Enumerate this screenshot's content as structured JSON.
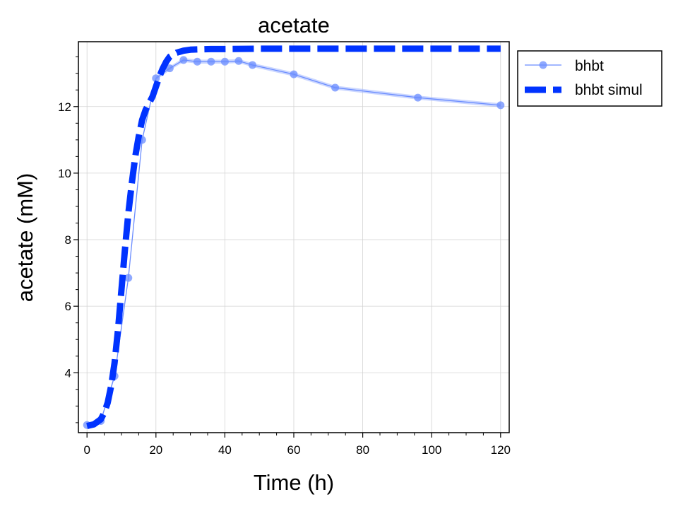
{
  "chart_data": {
    "type": "line",
    "title": "acetate",
    "xlabel": "Time (h)",
    "ylabel": "acetate (mM)",
    "xlim": [
      -2.5,
      122.5
    ],
    "ylim": [
      2.2,
      13.95
    ],
    "xticks": [
      0,
      20,
      40,
      60,
      80,
      100,
      120
    ],
    "yticks": [
      4,
      6,
      8,
      10,
      12
    ],
    "grid": true,
    "legend_position": "outside-top-right",
    "series": [
      {
        "name": "bhbt",
        "style": "line-with-markers",
        "color": "#6a8cff",
        "band_color": "#9fb5ff",
        "x": [
          0,
          4,
          8,
          12,
          16,
          20,
          24,
          28,
          32,
          36,
          40,
          44,
          48,
          60,
          72,
          96,
          120
        ],
        "y": [
          2.43,
          2.55,
          3.9,
          6.85,
          11.0,
          12.85,
          13.15,
          13.4,
          13.35,
          13.35,
          13.35,
          13.37,
          13.25,
          12.97,
          12.57,
          12.27,
          12.04
        ]
      },
      {
        "name": "bhbt simul",
        "style": "dashed-thick",
        "color": "#0033ff",
        "x": [
          0,
          2,
          4,
          5,
          6,
          7,
          8,
          9,
          10,
          11,
          12,
          13,
          14,
          15,
          16,
          17,
          18,
          19,
          20,
          21,
          22,
          23,
          24,
          26,
          28,
          30,
          32,
          36,
          40,
          50,
          60,
          80,
          100,
          120
        ],
        "y": [
          2.4,
          2.45,
          2.6,
          2.8,
          3.1,
          3.6,
          4.3,
          5.3,
          6.5,
          7.7,
          8.8,
          9.7,
          10.5,
          11.1,
          11.6,
          11.9,
          12.1,
          12.3,
          12.6,
          12.9,
          13.15,
          13.35,
          13.5,
          13.62,
          13.68,
          13.71,
          13.72,
          13.73,
          13.73,
          13.74,
          13.74,
          13.74,
          13.74,
          13.74
        ]
      }
    ]
  }
}
